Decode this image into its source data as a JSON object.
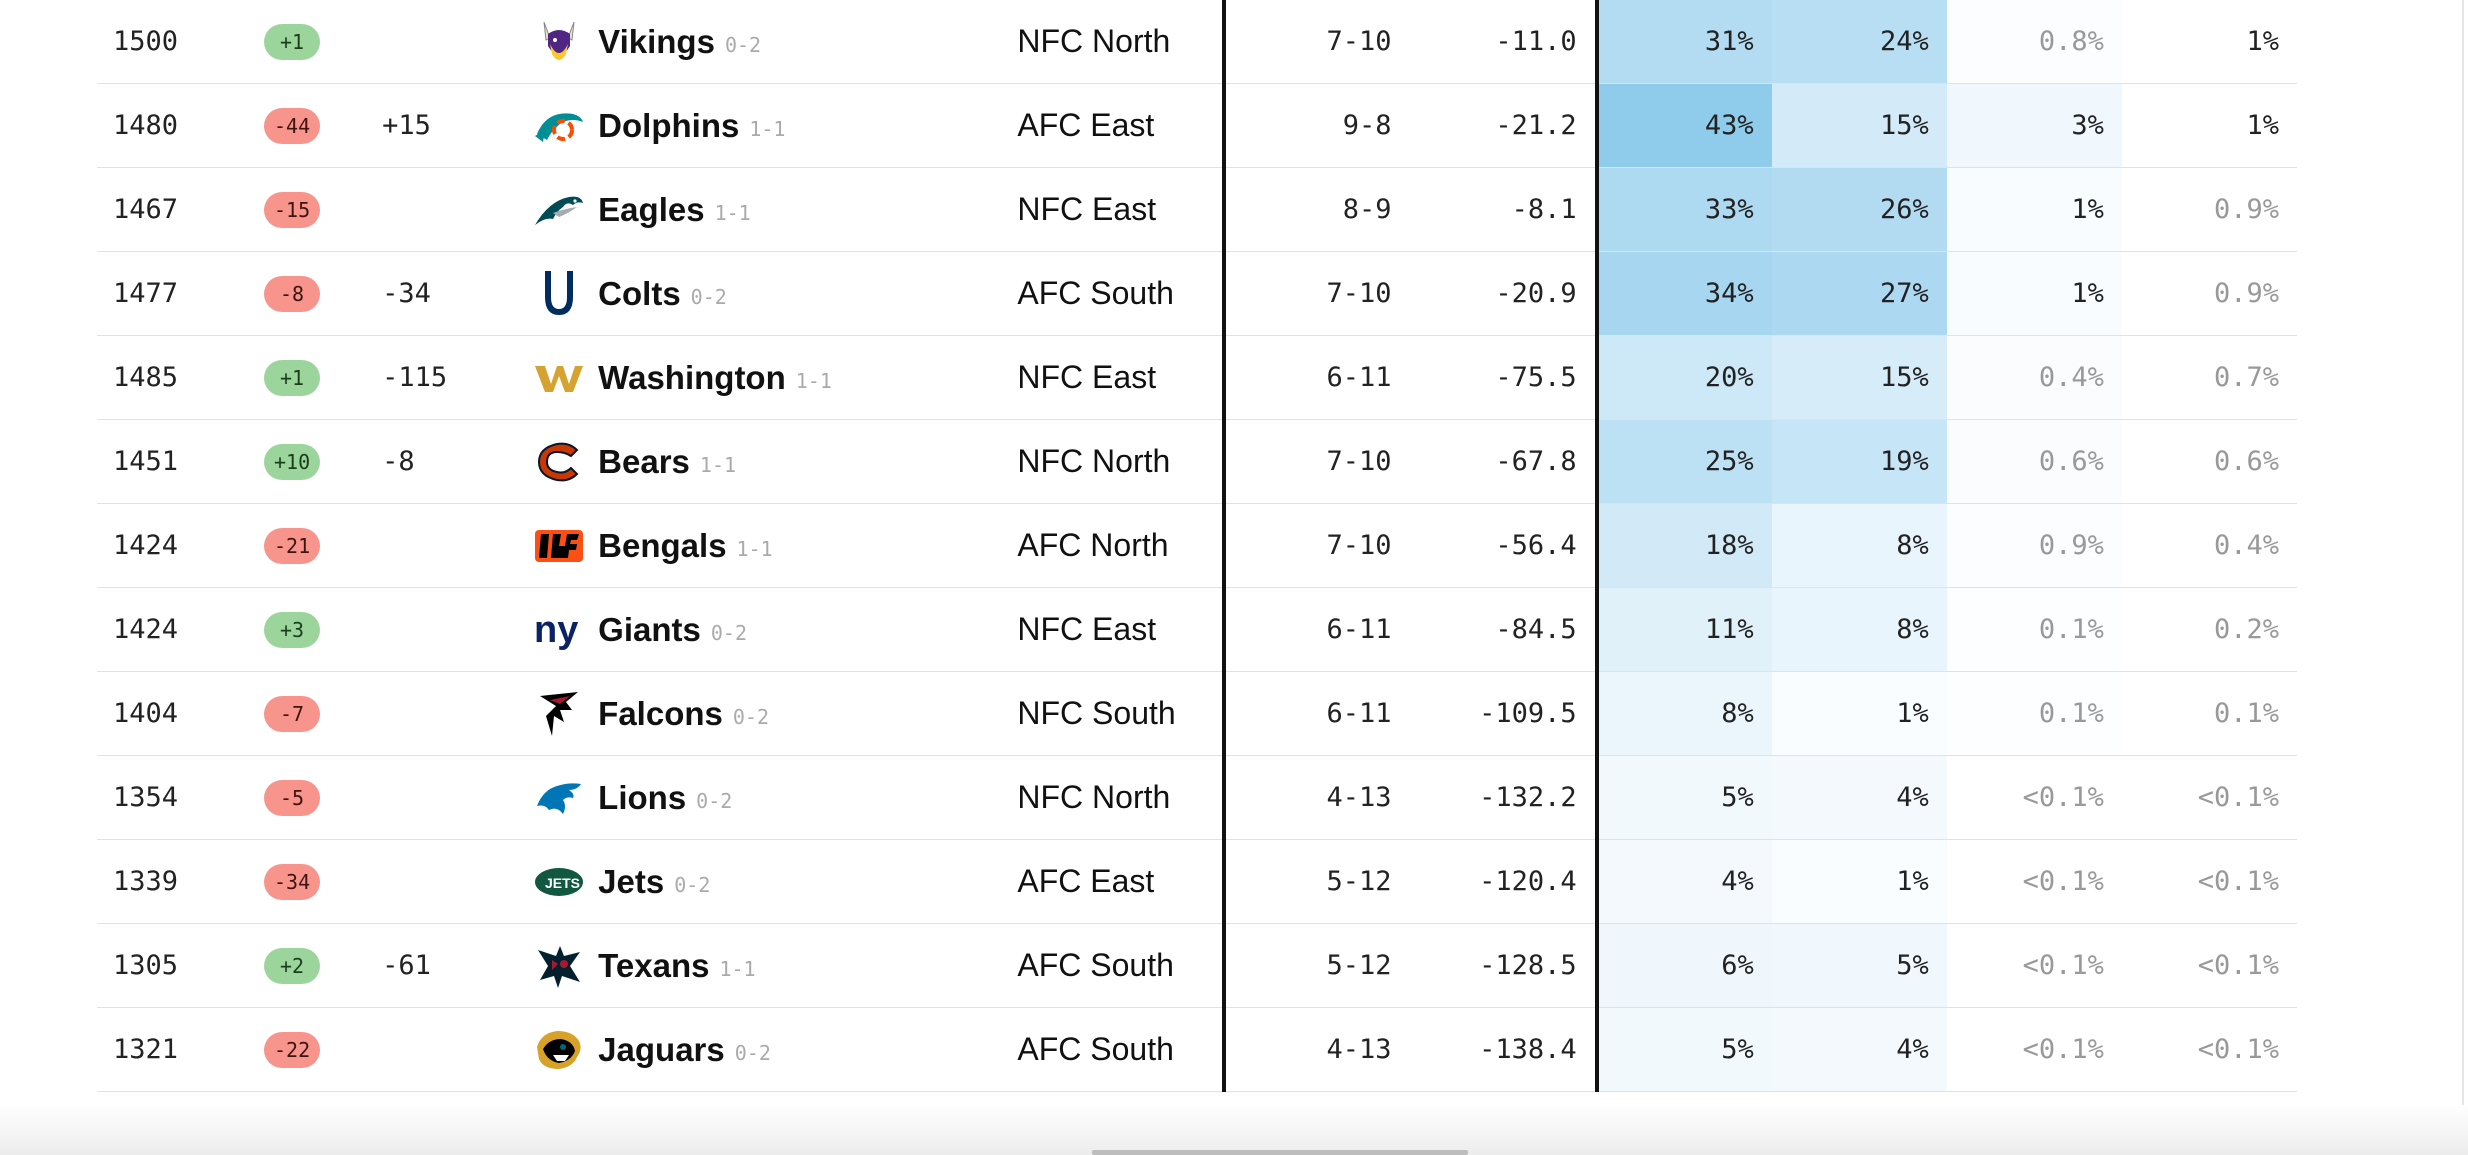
{
  "rows": [
    {
      "elo": "1500",
      "change": "+1",
      "change_dir": "pos",
      "proj": "",
      "team": "Vikings",
      "record": "0-2",
      "division": "NFC North",
      "proj_record": "7-10",
      "pt_diff": "-11.0",
      "playoffs": "31%",
      "division_win": "24%",
      "make_sb": "0.8%",
      "win_sb": "1%",
      "logo": "vikings-logo",
      "bg": [
        "#b3dcf2",
        "#b8def3",
        "#fbfdff",
        "#ffffff"
      ]
    },
    {
      "elo": "1480",
      "change": "-44",
      "change_dir": "neg",
      "proj": "+15",
      "team": "Dolphins",
      "record": "1-1",
      "division": "AFC East",
      "proj_record": "9-8",
      "pt_diff": "-21.2",
      "playoffs": "43%",
      "division_win": "15%",
      "make_sb": "3%",
      "win_sb": "1%",
      "logo": "dolphins-logo",
      "bg": [
        "#8fcceb",
        "#d3ebf8",
        "#f0f8fd",
        "#ffffff"
      ]
    },
    {
      "elo": "1467",
      "change": "-15",
      "change_dir": "neg",
      "proj": "",
      "team": "Eagles",
      "record": "1-1",
      "division": "NFC East",
      "proj_record": "8-9",
      "pt_diff": "-8.1",
      "playoffs": "33%",
      "division_win": "26%",
      "make_sb": "1%",
      "win_sb": "0.9%",
      "logo": "eagles-logo",
      "bg": [
        "#add9f1",
        "#b2dbf2",
        "#f8fcff",
        "#ffffff"
      ]
    },
    {
      "elo": "1477",
      "change": "-8",
      "change_dir": "neg",
      "proj": "-34",
      "team": "Colts",
      "record": "0-2",
      "division": "AFC South",
      "proj_record": "7-10",
      "pt_diff": "-20.9",
      "playoffs": "34%",
      "division_win": "27%",
      "make_sb": "1%",
      "win_sb": "0.9%",
      "logo": "colts-logo",
      "bg": [
        "#a6d6f0",
        "#acd8f1",
        "#f8fcff",
        "#ffffff"
      ]
    },
    {
      "elo": "1485",
      "change": "+1",
      "change_dir": "pos",
      "proj": "-115",
      "team": "Washington",
      "record": "1-1",
      "division": "NFC East",
      "proj_record": "6-11",
      "pt_diff": "-75.5",
      "playoffs": "20%",
      "division_win": "15%",
      "make_sb": "0.4%",
      "win_sb": "0.7%",
      "logo": "washington-logo",
      "bg": [
        "#cde8f7",
        "#d6ecf8",
        "#fafcfe",
        "#ffffff"
      ]
    },
    {
      "elo": "1451",
      "change": "+10",
      "change_dir": "pos",
      "proj": "-8",
      "team": "Bears",
      "record": "1-1",
      "division": "NFC North",
      "proj_record": "7-10",
      "pt_diff": "-67.8",
      "playoffs": "25%",
      "division_win": "19%",
      "make_sb": "0.6%",
      "win_sb": "0.6%",
      "logo": "bears-logo",
      "bg": [
        "#bde1f4",
        "#c6e5f6",
        "#fafcfe",
        "#ffffff"
      ]
    },
    {
      "elo": "1424",
      "change": "-21",
      "change_dir": "neg",
      "proj": "",
      "team": "Bengals",
      "record": "1-1",
      "division": "AFC North",
      "proj_record": "7-10",
      "pt_diff": "-56.4",
      "playoffs": "18%",
      "division_win": "8%",
      "make_sb": "0.9%",
      "win_sb": "0.4%",
      "logo": "bengals-logo",
      "bg": [
        "#d2eaf8",
        "#e9f5fc",
        "#fcfdfe",
        "#ffffff"
      ]
    },
    {
      "elo": "1424",
      "change": "+3",
      "change_dir": "pos",
      "proj": "",
      "team": "Giants",
      "record": "0-2",
      "division": "NFC East",
      "proj_record": "6-11",
      "pt_diff": "-84.5",
      "playoffs": "11%",
      "division_win": "8%",
      "make_sb": "0.1%",
      "win_sb": "0.2%",
      "logo": "giants-logo",
      "bg": [
        "#e1f1fa",
        "#e9f5fc",
        "#fdfeff",
        "#ffffff"
      ]
    },
    {
      "elo": "1404",
      "change": "-7",
      "change_dir": "neg",
      "proj": "",
      "team": "Falcons",
      "record": "0-2",
      "division": "NFC South",
      "proj_record": "6-11",
      "pt_diff": "-109.5",
      "playoffs": "8%",
      "division_win": "1%",
      "make_sb": "0.1%",
      "win_sb": "0.1%",
      "logo": "falcons-logo",
      "bg": [
        "#ebf6fc",
        "#fafdff",
        "#fdfeff",
        "#ffffff"
      ]
    },
    {
      "elo": "1354",
      "change": "-5",
      "change_dir": "neg",
      "proj": "",
      "team": "Lions",
      "record": "0-2",
      "division": "NFC North",
      "proj_record": "4-13",
      "pt_diff": "-132.2",
      "playoffs": "5%",
      "division_win": "4%",
      "make_sb": "<0.1%",
      "win_sb": "<0.1%",
      "logo": "lions-logo",
      "bg": [
        "#f1f9fd",
        "#f3f9fd",
        "#ffffff",
        "#ffffff"
      ]
    },
    {
      "elo": "1339",
      "change": "-34",
      "change_dir": "neg",
      "proj": "",
      "team": "Jets",
      "record": "0-2",
      "division": "AFC East",
      "proj_record": "5-12",
      "pt_diff": "-120.4",
      "playoffs": "4%",
      "division_win": "1%",
      "make_sb": "<0.1%",
      "win_sb": "<0.1%",
      "logo": "jets-logo",
      "bg": [
        "#f3f9fd",
        "#fafdff",
        "#ffffff",
        "#ffffff"
      ]
    },
    {
      "elo": "1305",
      "change": "+2",
      "change_dir": "pos",
      "proj": "-61",
      "team": "Texans",
      "record": "1-1",
      "division": "AFC South",
      "proj_record": "5-12",
      "pt_diff": "-128.5",
      "playoffs": "6%",
      "division_win": "5%",
      "make_sb": "<0.1%",
      "win_sb": "<0.1%",
      "logo": "texans-logo",
      "bg": [
        "#eff7fd",
        "#f1f8fd",
        "#ffffff",
        "#ffffff"
      ]
    },
    {
      "elo": "1321",
      "change": "-22",
      "change_dir": "neg",
      "proj": "",
      "team": "Jaguars",
      "record": "0-2",
      "division": "AFC South",
      "proj_record": "4-13",
      "pt_diff": "-138.4",
      "playoffs": "5%",
      "division_win": "4%",
      "make_sb": "<0.1%",
      "win_sb": "<0.1%",
      "logo": "jaguars-logo",
      "bg": [
        "#f1f9fd",
        "#f3f9fd",
        "#ffffff",
        "#ffffff"
      ]
    }
  ],
  "colors": {
    "positive_badge": "#9bd59c",
    "negative_badge": "#f7948c",
    "divider": "#111111",
    "muted_text": "#999999"
  }
}
